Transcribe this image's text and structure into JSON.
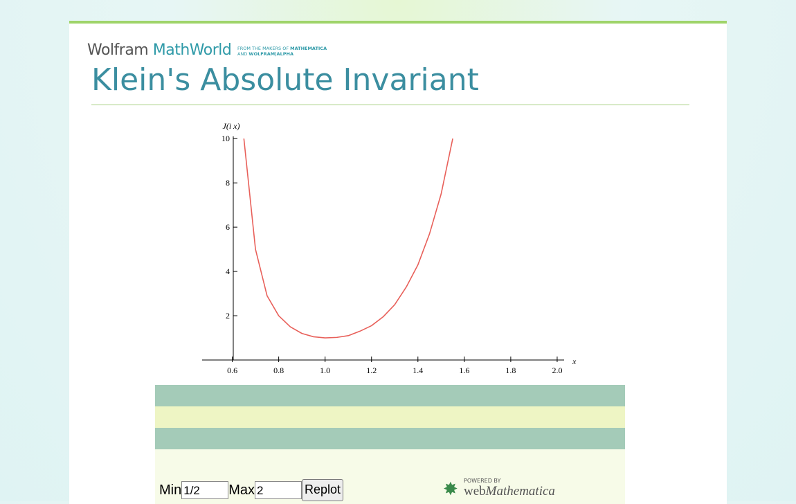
{
  "header": {
    "brand": "Wolfram",
    "product": "MathWorld",
    "tagline_1": "FROM THE MAKERS OF",
    "tagline_1b": "MATHEMATICA",
    "tagline_2": "AND",
    "tagline_2b": "WOLFRAM|ALPHA"
  },
  "title": "Klein's Absolute Invariant",
  "chart_data": {
    "type": "line",
    "ylabel": "J(i x)",
    "xlabel": "x",
    "color": "#e8605a",
    "x": [
      0.65,
      0.7,
      0.75,
      0.8,
      0.85,
      0.9,
      0.95,
      1.0,
      1.05,
      1.1,
      1.15,
      1.2,
      1.25,
      1.3,
      1.35,
      1.4,
      1.45,
      1.5,
      1.55
    ],
    "values": [
      10,
      5.0,
      2.9,
      2.0,
      1.5,
      1.2,
      1.05,
      1.0,
      1.02,
      1.1,
      1.3,
      1.55,
      1.95,
      2.5,
      3.3,
      4.3,
      5.7,
      7.5,
      10
    ],
    "xlim": [
      0.47,
      2.03
    ],
    "ylim": [
      0,
      10.1
    ],
    "xticks": [
      0.6,
      0.8,
      {
        "value": 1.0,
        "label": "1.0"
      },
      1.2,
      1.4,
      1.6,
      1.8,
      {
        "value": 2.0,
        "label": "2.0"
      }
    ],
    "yticks": [
      2,
      4,
      6,
      8,
      10
    ]
  },
  "form": {
    "min_label": "Min",
    "min_value": "1/2",
    "max_label": "Max",
    "max_value": "2",
    "button": "Replot"
  },
  "powered": {
    "small": "POWERED BY",
    "web": "web",
    "mathematica": "Mathematica"
  }
}
